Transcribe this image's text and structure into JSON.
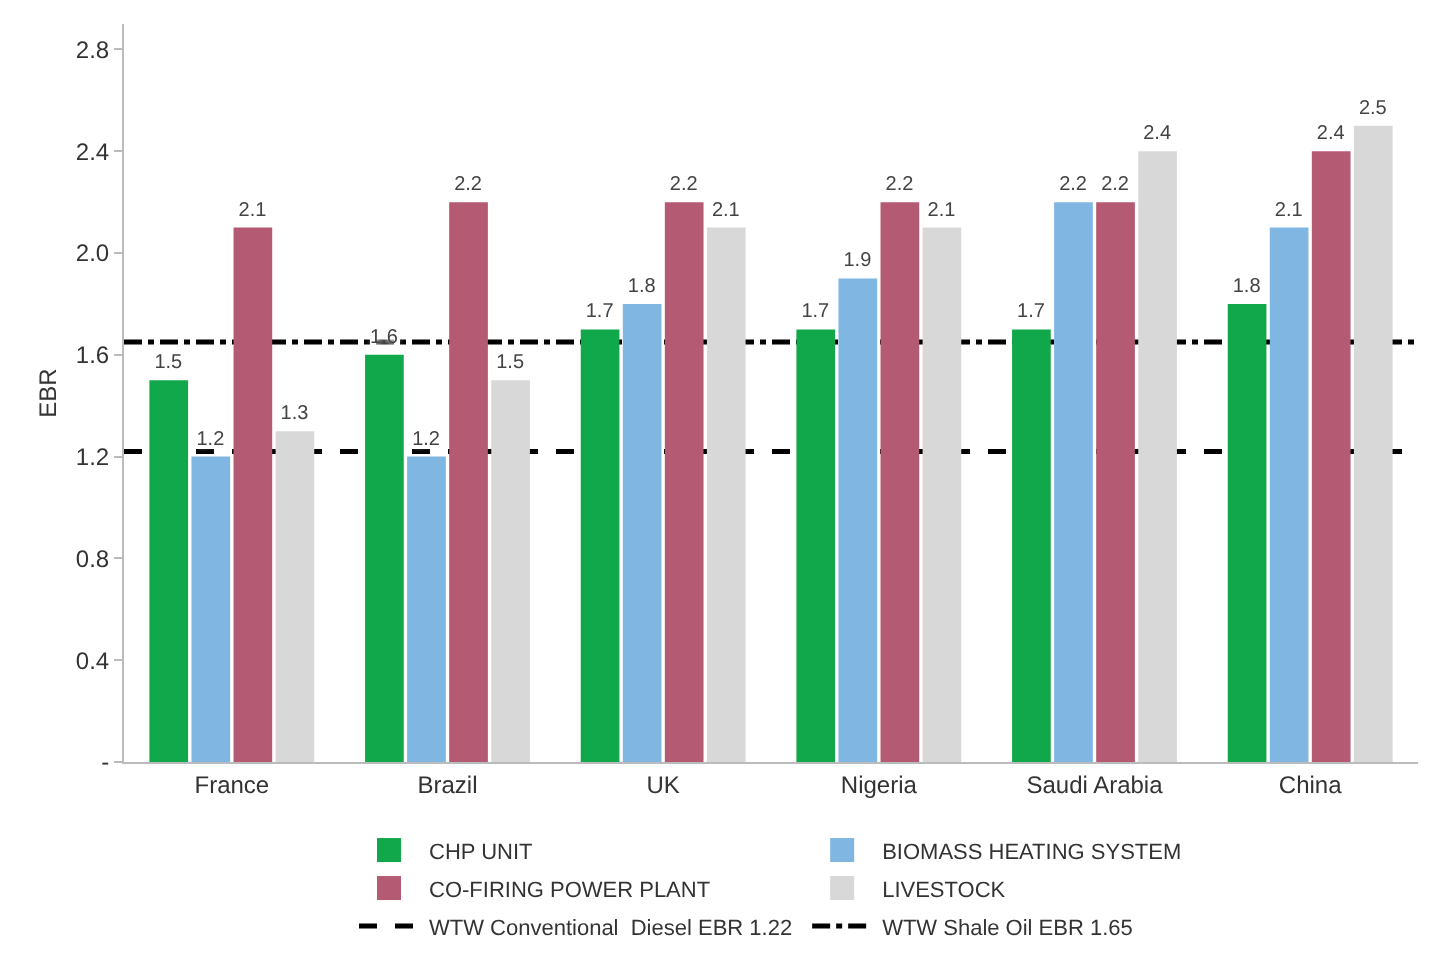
{
  "chart_data": {
    "type": "bar",
    "ylabel": "EBR",
    "categories": [
      "France",
      "Brazil",
      "UK",
      "Nigeria",
      "Saudi Arabia",
      "China"
    ],
    "series": [
      {
        "name": "CHP UNIT",
        "color": "#10a84a",
        "values": [
          1.5,
          1.6,
          1.7,
          1.7,
          1.7,
          1.8
        ]
      },
      {
        "name": "BIOMASS HEATING SYSTEM",
        "color": "#7fb6e2",
        "values": [
          1.2,
          1.2,
          1.8,
          1.9,
          2.2,
          2.1
        ]
      },
      {
        "name": "CO-FIRING POWER PLANT",
        "color": "#b45a72",
        "values": [
          2.1,
          2.2,
          2.2,
          2.2,
          2.2,
          2.4
        ]
      },
      {
        "name": "LIVESTOCK",
        "color": "#d8d8d8",
        "values": [
          1.3,
          1.5,
          2.1,
          2.1,
          2.4,
          2.5
        ]
      }
    ],
    "ref_lines": [
      {
        "axis": "y",
        "value": 1.22,
        "label": "WTW Conventional  Diesel EBR 1.22",
        "color": "#000000",
        "line_style": "dashed"
      },
      {
        "axis": "y",
        "value": 1.65,
        "label": "WTW Shale Oil EBR 1.65",
        "color": "#000000",
        "line_style": "dashdot"
      }
    ],
    "ylim": [
      0,
      2.9
    ],
    "yticks": [
      {
        "value": 0,
        "label": "-"
      },
      0.4,
      0.8,
      1.2,
      1.6,
      {
        "value": 2,
        "label": "2.0"
      },
      2.4,
      2.8
    ],
    "data_labels": true,
    "grid": false,
    "legend": "bottom"
  }
}
